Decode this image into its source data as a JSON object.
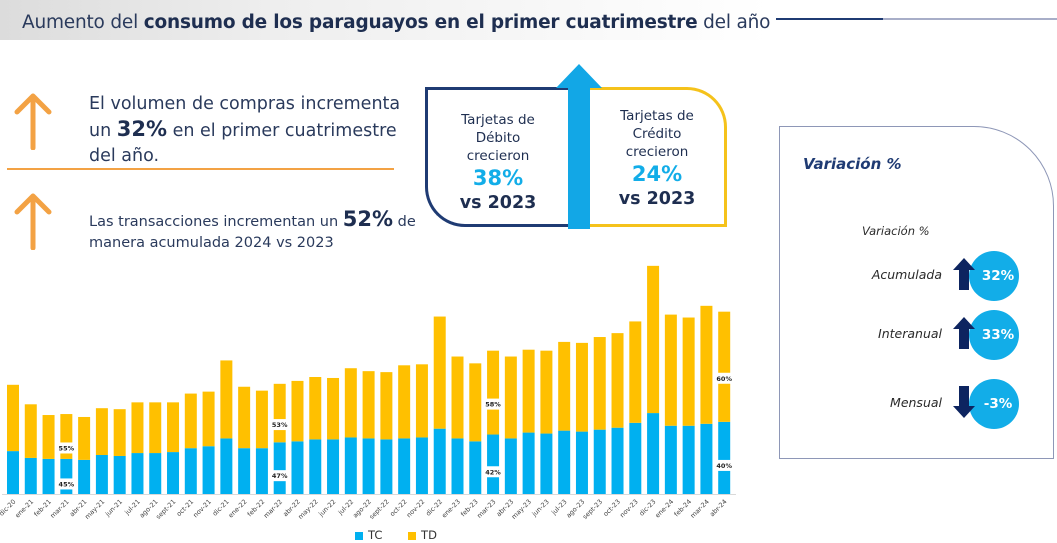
{
  "header": {
    "title_prefix": "Aumento del ",
    "title_bold": "consumo de los paraguayos en el primer cuatrimestre",
    "title_suffix": " del año"
  },
  "kpis": [
    {
      "icon": "arrow-up-icon",
      "text_before": "El volumen de compras incrementa un ",
      "highlight": "32%",
      "text_after": " en el primer cuatrimestre del año."
    },
    {
      "icon": "arrow-up-icon",
      "text_before": "Las transacciones incrementan un ",
      "highlight": "52%",
      "text_after": " de manera acumulada 2024 vs 2023"
    }
  ],
  "cards": {
    "debit": {
      "label_line1": "Tarjetas de",
      "label_line2": "Débito",
      "label_line3": "crecieron",
      "pct": "38%",
      "vs": "vs 2023"
    },
    "credit": {
      "label_line1": "Tarjetas de",
      "label_line2": "Crédito",
      "label_line3": "crecieron",
      "pct": "24%",
      "vs": "vs 2023"
    }
  },
  "variation_panel": {
    "title": "Variación %",
    "subtitle": "Variación %",
    "rows": [
      {
        "label": "Acumulada",
        "direction": "up",
        "value": "32%"
      },
      {
        "label": "Interanual",
        "direction": "up",
        "value": "33%"
      },
      {
        "label": "Mensual",
        "direction": "down",
        "value": "-3%"
      }
    ]
  },
  "colors": {
    "tc": "#00b0f0",
    "td": "#ffc000",
    "navy": "#1f3b73",
    "accent_orange": "#f3a244"
  },
  "chart_data": {
    "type": "bar",
    "stacked": true,
    "title": "",
    "xlabel": "",
    "ylabel": "",
    "y_units": "relative index (no axis shown)",
    "ylim": [
      0,
      240
    ],
    "grid": false,
    "legend": {
      "position": "bottom",
      "entries": [
        "TC",
        "TD"
      ]
    },
    "categories": [
      "dic-20",
      "ene-21",
      "feb-21",
      "mar-21",
      "abr-21",
      "may-21",
      "jun-21",
      "jul-21",
      "ago-21",
      "sept-21",
      "oct-21",
      "nov-21",
      "dic-21",
      "ene-22",
      "feb-22",
      "mar-22",
      "abr-22",
      "may-22",
      "jun-22",
      "jul-22",
      "ago-22",
      "sept-22",
      "oct-22",
      "nov-22",
      "dic-22",
      "ene-23",
      "feb-23",
      "mar-23",
      "abr-23",
      "may-23",
      "jun-23",
      "jul-23",
      "ago-23",
      "sept-23",
      "oct-23",
      "nov-23",
      "dic-23",
      "ene-24",
      "feb-24",
      "mar-24",
      "abr-24"
    ],
    "series": [
      {
        "name": "TC",
        "values": [
          44,
          37,
          36,
          36,
          35,
          40,
          39,
          42,
          42,
          43,
          47,
          49,
          57,
          47,
          47,
          53,
          54,
          56,
          56,
          58,
          57,
          56,
          57,
          58,
          67,
          57,
          54,
          61,
          57,
          63,
          62,
          65,
          64,
          66,
          68,
          73,
          83,
          70,
          70,
          72,
          74
        ]
      },
      {
        "name": "TD",
        "values": [
          68,
          55,
          45,
          46,
          44,
          48,
          48,
          52,
          52,
          51,
          56,
          56,
          80,
          63,
          59,
          60,
          62,
          64,
          63,
          71,
          69,
          69,
          75,
          75,
          115,
          84,
          80,
          86,
          84,
          85,
          85,
          91,
          91,
          95,
          97,
          104,
          151,
          114,
          111,
          121,
          113
        ]
      }
    ],
    "annotations": [
      {
        "category": "mar-21",
        "TC": "45%",
        "TD": "55%"
      },
      {
        "category": "mar-22",
        "TC": "47%",
        "TD": "53%"
      },
      {
        "category": "mar-23",
        "TC": "42%",
        "TD": "58%"
      },
      {
        "category": "abr-24",
        "TC": "40%",
        "TD": "60%"
      }
    ]
  }
}
